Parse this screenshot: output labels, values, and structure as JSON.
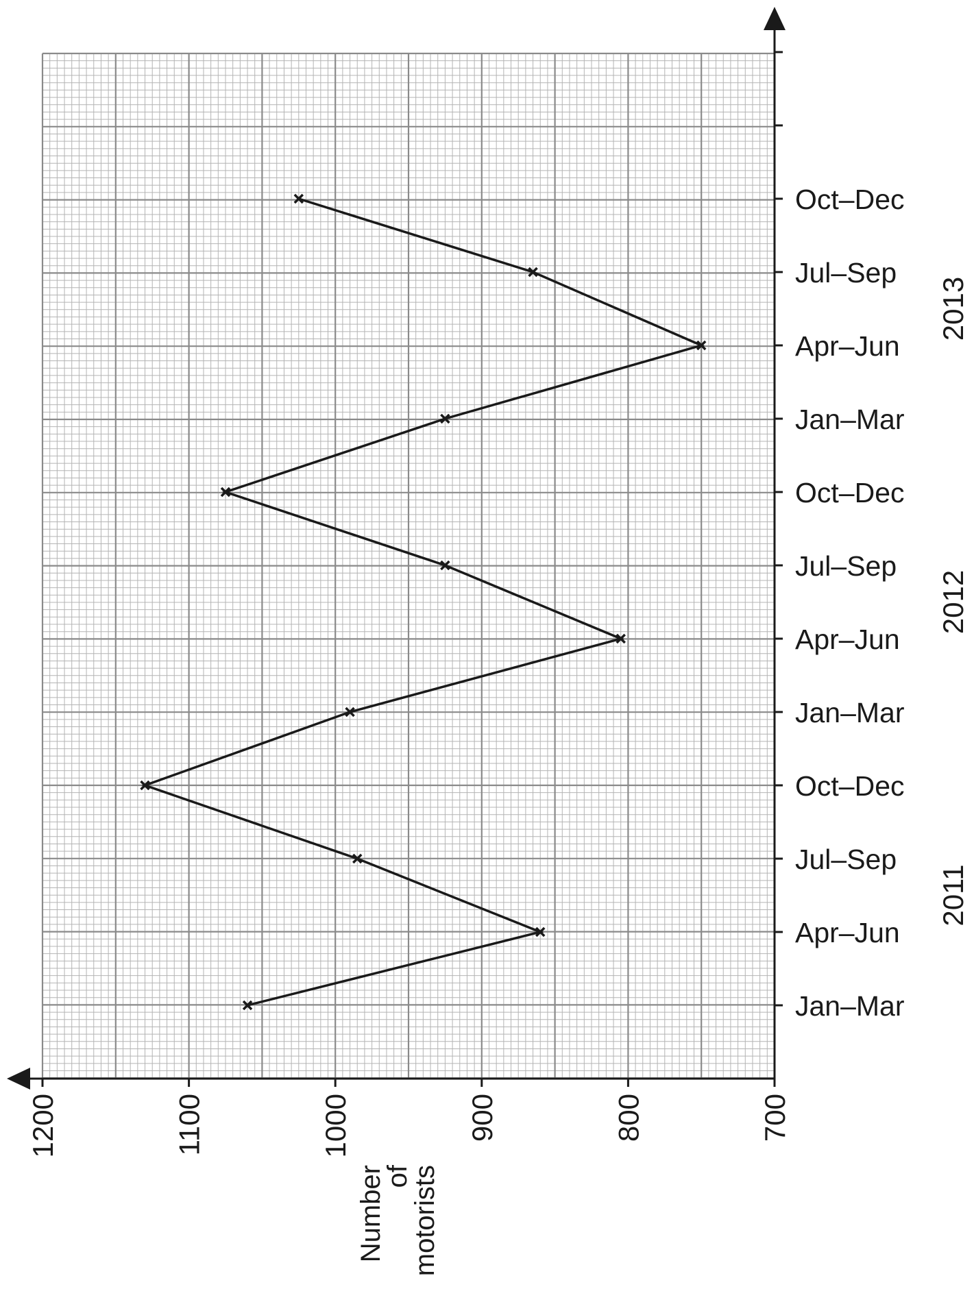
{
  "chart_data": {
    "type": "line",
    "orientation": "rotated",
    "x": [
      "Jan–Mar",
      "Apr–Jun",
      "Jul–Sep",
      "Oct–Dec",
      "Jan–Mar",
      "Apr–Jun",
      "Jul–Sep",
      "Oct–Dec",
      "Jan–Mar",
      "Apr–Jun",
      "Jul–Sep",
      "Oct–Dec"
    ],
    "years": [
      {
        "label": "2011",
        "quarters": [
          0,
          1,
          2,
          3
        ]
      },
      {
        "label": "2012",
        "quarters": [
          4,
          5,
          6,
          7
        ]
      },
      {
        "label": "2013",
        "quarters": [
          8,
          9,
          10,
          11
        ]
      }
    ],
    "series": [
      {
        "values": [
          1060,
          860,
          985,
          1130,
          990,
          805,
          925,
          1075,
          925,
          750,
          865,
          1025
        ]
      }
    ],
    "ylabel": [
      "Number",
      "of",
      "motorists"
    ],
    "xlabel": "",
    "ylim": [
      700,
      1200
    ],
    "yticks": [
      1200,
      1100,
      1000,
      900,
      800,
      700
    ],
    "ytick_labels": [
      "1200",
      "1100",
      "1000",
      "900",
      "800",
      "700"
    ],
    "grid": true,
    "marker": "cross",
    "colors": {
      "line": "#1a1a1a",
      "grid_major": "#8a8a8a",
      "grid_minor": "#b4b4b4",
      "axis": "#1a1a1a"
    }
  }
}
